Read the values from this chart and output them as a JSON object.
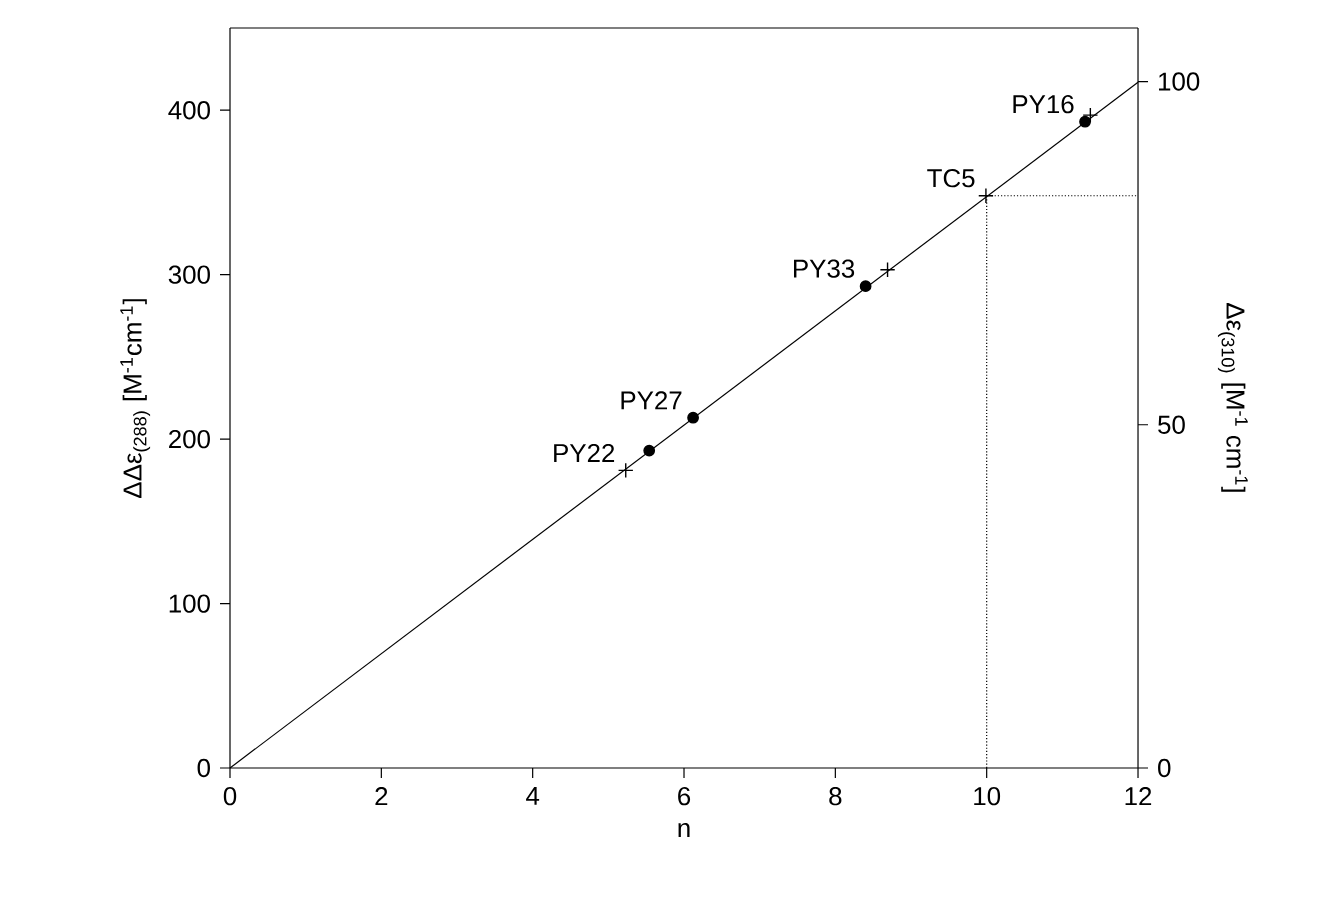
{
  "chart_data": {
    "type": "scatter",
    "xlabel": "n",
    "ylabel": "ΔΔε$_{(288)}$ [M$^{-1}$cm$^{-1}$]",
    "y2label": "Δε$_{(310)}$ [M$^{-1}$ cm$^{-1}$]",
    "xlim": [
      0,
      12
    ],
    "xticks": [
      0,
      2,
      4,
      6,
      8,
      10,
      12
    ],
    "ylim": [
      0,
      450
    ],
    "yticks": [
      0,
      100,
      200,
      300,
      400
    ],
    "y2lim": [
      0,
      107.8
    ],
    "y2ticks": [
      0,
      50,
      100
    ],
    "series": [
      {
        "type": "line",
        "color": "#000000",
        "marker": "none",
        "line_style": "solid",
        "x": [
          0,
          12
        ],
        "values": [
          0,
          417
        ]
      },
      {
        "type": "line",
        "color": "#000000",
        "marker": "none",
        "line_style": "dotted",
        "x": [
          10,
          10,
          12
        ],
        "values": [
          0,
          348,
          348
        ]
      },
      {
        "color": "#000000",
        "marker": "circle",
        "x": [
          5.54,
          6.12,
          8.4,
          11.3
        ],
        "values": [
          193,
          213,
          293,
          393
        ]
      },
      {
        "color": "#000000",
        "marker": "cross",
        "x": [
          5.23,
          8.69,
          9.99,
          11.37
        ],
        "values": [
          181,
          303,
          348,
          397
        ]
      }
    ],
    "annotations": [
      {
        "text": "PY22",
        "x": 5.23,
        "y": 181
      },
      {
        "text": "PY27",
        "x": 6.12,
        "y": 213
      },
      {
        "text": "PY33",
        "x": 8.4,
        "y": 293
      },
      {
        "text": "TC5",
        "x": 9.99,
        "y": 348
      },
      {
        "text": "PY16",
        "x": 11.3,
        "y": 393
      }
    ]
  }
}
